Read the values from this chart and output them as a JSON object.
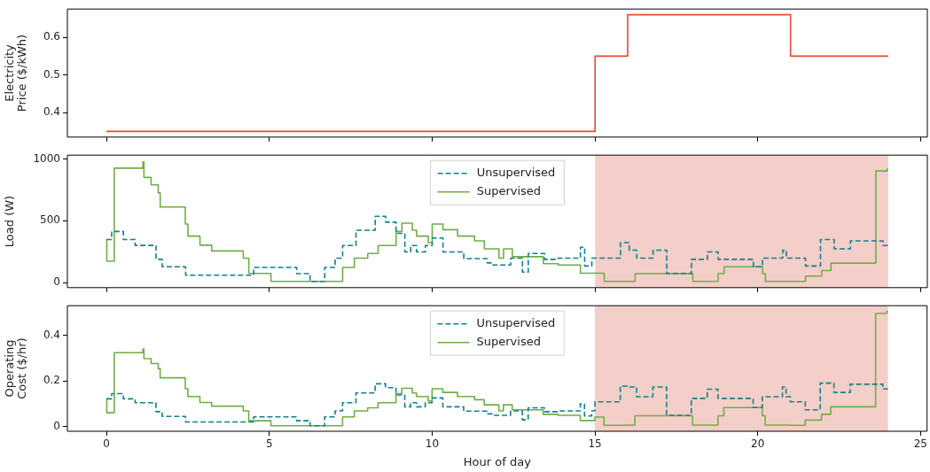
{
  "chart_data": [
    {
      "type": "step",
      "ylabel": "Electricity\nPrice ($/kWh)",
      "xlim": [
        -1.2,
        25.2
      ],
      "xticks": [
        0,
        5,
        10,
        15,
        20,
        25
      ],
      "ylim": [
        0.335,
        0.675
      ],
      "yticks": [
        0.4,
        0.5,
        0.6
      ],
      "tick_labels": "y",
      "series": [
        {
          "color": "#e24a33",
          "x": [
            0,
            15,
            16,
            21,
            24
          ],
          "values": [
            0.35,
            0.55,
            0.66,
            0.55,
            0.55
          ]
        }
      ]
    },
    {
      "type": "step",
      "ylabel": "Load (W)",
      "xlim": [
        -1.2,
        25.2
      ],
      "xticks": [
        0,
        5,
        10,
        15,
        20,
        25
      ],
      "ylim": [
        -40,
        1030
      ],
      "yticks": [
        0,
        500,
        1000
      ],
      "tick_labels": "y",
      "legend": "top",
      "bands": [
        {
          "axis": "x",
          "from": 15,
          "to": 24,
          "color": "#f4cfc9"
        }
      ],
      "series": [
        {
          "name": "Unsupervised",
          "color": "#137f8a",
          "line_style": "dashed",
          "x": [
            0,
            0.16,
            0.52,
            0.88,
            1.52,
            1.71,
            2.43,
            4.52,
            5.84,
            6.25,
            6.7,
            7.02,
            7.25,
            7.66,
            8.25,
            8.57,
            8.89,
            9.16,
            9.34,
            9.52,
            9.79,
            10.0,
            10.33,
            10.97,
            11.69,
            11.87,
            12.41,
            12.77,
            12.95,
            13.45,
            13.87,
            14.55,
            14.68,
            14.9,
            15.78,
            16.05,
            16.28,
            16.78,
            17.2,
            17.96,
            18.45,
            18.78,
            19.86,
            20.14,
            20.76,
            20.87,
            21.46,
            21.92,
            22.34,
            22.84,
            23.84,
            24
          ],
          "values": [
            348,
            414,
            348,
            301,
            188,
            128,
            60,
            123,
            73,
            10,
            123,
            198,
            300,
            423,
            536,
            489,
            398,
            248,
            300,
            248,
            300,
            361,
            248,
            195,
            160,
            143,
            198,
            85,
            236,
            188,
            198,
            286,
            135,
            198,
            323,
            263,
            198,
            263,
            75,
            188,
            248,
            188,
            128,
            198,
            263,
            198,
            135,
            348,
            273,
            338,
            300,
            300
          ]
        },
        {
          "name": "Supervised",
          "color": "#70ad47",
          "line_style": "solid",
          "x": [
            0,
            0.01,
            0.24,
            1.12,
            1.15,
            1.37,
            1.59,
            1.65,
            2.42,
            2.5,
            2.87,
            3.23,
            4.2,
            4.37,
            5.05,
            7.25,
            7.61,
            8.02,
            8.34,
            8.89,
            9.07,
            9.39,
            9.52,
            9.88,
            10.0,
            10.33,
            10.78,
            11.3,
            11.6,
            12.05,
            12.19,
            12.46,
            13.41,
            13.87,
            14.55,
            15.28,
            16.23,
            18.0,
            18.78,
            18.96,
            20.14,
            20.23,
            21.46,
            21.96,
            22.24,
            23.62,
            23.96,
            24
          ],
          "values": [
            348,
            173,
            925,
            975,
            850,
            790,
            725,
            611,
            474,
            376,
            303,
            256,
            198,
            75,
            10,
            123,
            198,
            236,
            300,
            414,
            481,
            423,
            376,
            323,
            474,
            428,
            376,
            338,
            273,
            198,
            273,
            210,
            153,
            143,
            77,
            10,
            73,
            10,
            73,
            128,
            73,
            10,
            53,
            98,
            158,
            902,
            917,
            917
          ]
        }
      ]
    },
    {
      "type": "step",
      "ylabel": "Operating\nCost ($/hr)",
      "xlabel": "Hour of day",
      "xlim": [
        -1.2,
        25.2
      ],
      "xticks": [
        0,
        5,
        10,
        15,
        20,
        25
      ],
      "ylim": [
        -0.02,
        0.53
      ],
      "yticks": [
        0.0,
        0.2,
        0.4
      ],
      "legend": "top",
      "bands": [
        {
          "axis": "x",
          "from": 15,
          "to": 24,
          "color": "#f4cfc9"
        }
      ],
      "series": [
        {
          "name": "Unsupervised",
          "color": "#137f8a",
          "line_style": "dashed",
          "x": [
            0,
            0.16,
            0.52,
            0.88,
            1.52,
            1.71,
            2.43,
            4.52,
            5.84,
            6.25,
            6.7,
            7.02,
            7.25,
            7.66,
            8.25,
            8.57,
            8.89,
            9.16,
            9.34,
            9.52,
            9.79,
            10.0,
            10.33,
            10.97,
            11.69,
            11.87,
            12.41,
            12.77,
            12.95,
            13.45,
            13.87,
            14.55,
            14.68,
            14.9,
            15,
            15.78,
            16.05,
            16.28,
            16.78,
            17.2,
            17.96,
            18.45,
            18.78,
            19.86,
            20.14,
            20.76,
            20.87,
            21,
            21.46,
            21.92,
            22.34,
            22.84,
            23.84,
            24
          ],
          "values": [
            0.122,
            0.145,
            0.122,
            0.105,
            0.066,
            0.045,
            0.021,
            0.043,
            0.026,
            0.004,
            0.043,
            0.069,
            0.105,
            0.148,
            0.188,
            0.171,
            0.139,
            0.087,
            0.105,
            0.087,
            0.105,
            0.126,
            0.087,
            0.068,
            0.056,
            0.05,
            0.069,
            0.03,
            0.083,
            0.066,
            0.069,
            0.1,
            0.047,
            0.069,
            0.109,
            0.178,
            0.174,
            0.131,
            0.174,
            0.05,
            0.124,
            0.164,
            0.124,
            0.084,
            0.131,
            0.174,
            0.131,
            0.109,
            0.074,
            0.191,
            0.15,
            0.186,
            0.165,
            0.165
          ]
        },
        {
          "name": "Supervised",
          "color": "#70ad47",
          "line_style": "solid",
          "x": [
            0,
            0.01,
            0.24,
            1.12,
            1.15,
            1.37,
            1.59,
            1.65,
            2.42,
            2.5,
            2.87,
            3.23,
            4.2,
            4.37,
            5.05,
            7.25,
            7.61,
            8.02,
            8.34,
            8.89,
            9.07,
            9.39,
            9.52,
            9.88,
            10.0,
            10.33,
            10.78,
            11.3,
            11.6,
            12.05,
            12.19,
            12.46,
            13.41,
            13.87,
            14.55,
            15,
            15.28,
            16,
            16.23,
            18.0,
            18.78,
            18.96,
            20.14,
            20.23,
            21,
            21.46,
            21.96,
            22.24,
            23.62,
            23.96,
            24
          ],
          "values": [
            0.122,
            0.061,
            0.324,
            0.341,
            0.298,
            0.277,
            0.254,
            0.214,
            0.166,
            0.132,
            0.106,
            0.09,
            0.069,
            0.026,
            0.004,
            0.043,
            0.069,
            0.083,
            0.105,
            0.145,
            0.168,
            0.148,
            0.132,
            0.113,
            0.166,
            0.15,
            0.132,
            0.118,
            0.096,
            0.069,
            0.096,
            0.074,
            0.054,
            0.05,
            0.027,
            0.042,
            0.006,
            0.007,
            0.048,
            0.007,
            0.048,
            0.084,
            0.048,
            0.007,
            0.006,
            0.029,
            0.054,
            0.087,
            0.496,
            0.504,
            0.504
          ]
        }
      ]
    }
  ]
}
